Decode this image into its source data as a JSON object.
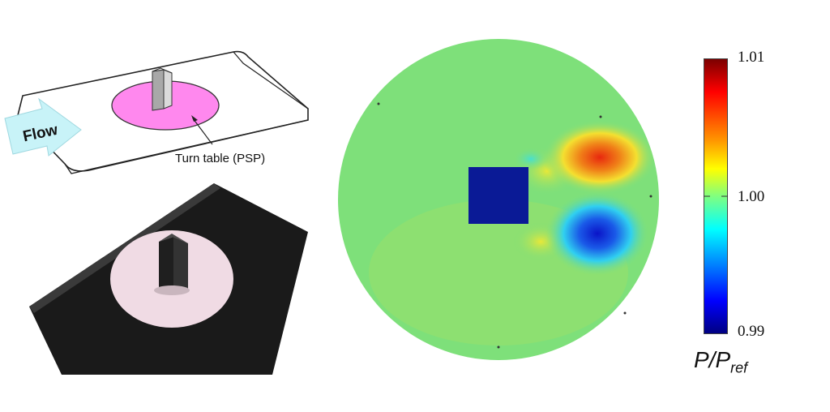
{
  "diagram": {
    "flow_label": "Flow",
    "turntable_label": "Turn table (PSP)",
    "turntable_color": "#ff88ee",
    "arrow_color": "#c8f3f8"
  },
  "colorbar": {
    "max_label": "1.01",
    "mid_label": "1.00",
    "min_label": "0.99",
    "title_main": "P/P",
    "title_sub": "ref",
    "colormap": "jet"
  },
  "psp_map": {
    "background_color": "#7ee07a",
    "model_color": "#0a1a96",
    "high_pressure_color": "#e8280e",
    "low_pressure_color": "#0a2ad8"
  }
}
